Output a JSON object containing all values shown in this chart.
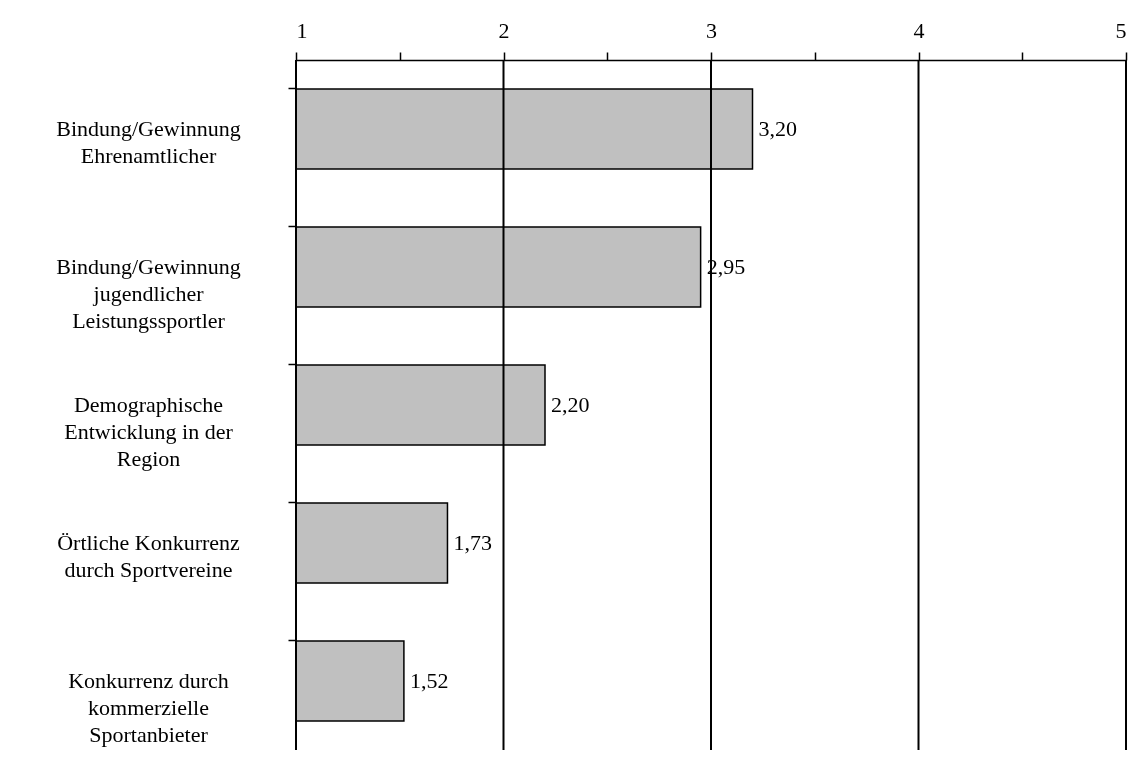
{
  "chart_data": {
    "type": "bar",
    "orientation": "horizontal",
    "categories": [
      "Bindung/Gewinnung\nEhrenamtlicher",
      "Bindung/Gewinnung\njugendlicher\nLeistungssportler",
      "Demographische\nEntwicklung in der\nRegion",
      "Örtliche Konkurrenz\ndurch Sportvereine",
      "Konkurrenz durch\nkommerzielle\nSportanbieter"
    ],
    "values": [
      3.2,
      2.95,
      2.2,
      1.73,
      1.52
    ],
    "value_labels": [
      "3,20",
      "2,95",
      "2,20",
      "1,73",
      "1,52"
    ],
    "color": "#c0c0c0",
    "xlim": [
      1,
      5
    ],
    "xticks": [
      1,
      {
        "value": 1.5,
        "label": null
      },
      2,
      {
        "value": 2.5,
        "label": null
      },
      3,
      {
        "value": 3.5,
        "label": null
      },
      4,
      {
        "value": 4.5,
        "label": null
      },
      5
    ],
    "grid": "x"
  }
}
